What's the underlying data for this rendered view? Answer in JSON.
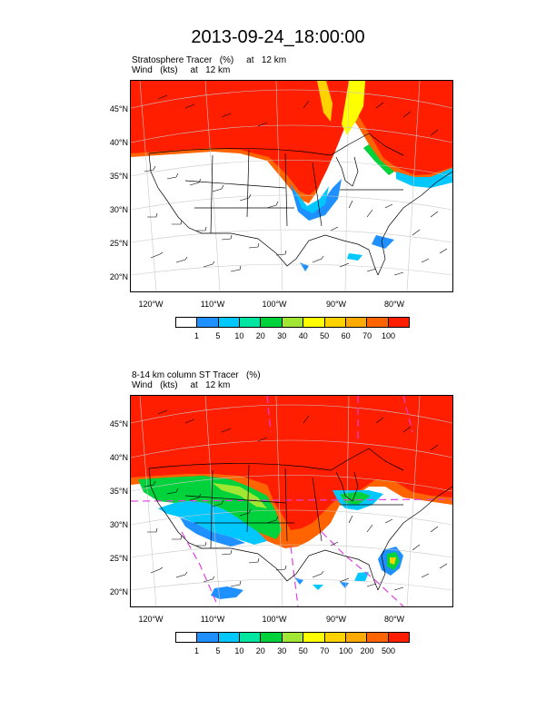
{
  "title": "2013-09-24_18:00:00",
  "panels": [
    {
      "subtitle_lines": [
        "Stratosphere Tracer   (%)     at   12 km",
        "Wind   (kts)     at   12 km"
      ],
      "lat_labels": [
        "45°N",
        "40°N",
        "35°N",
        "30°N",
        "25°N",
        "20°N"
      ],
      "lon_labels": [
        "120°W",
        "110°W",
        "100°W",
        "90°W",
        "80°W"
      ],
      "colorbar_colors": [
        "#ffffff",
        "#1e90ff",
        "#00c8ff",
        "#00e6a0",
        "#00d23c",
        "#a0e632",
        "#ffff00",
        "#ffd200",
        "#ffaa00",
        "#ff6400",
        "#ff1e00"
      ],
      "colorbar_labels": [
        "1",
        "5",
        "10",
        "20",
        "30",
        "40",
        "50",
        "60",
        "70",
        "100"
      ]
    },
    {
      "subtitle_lines": [
        "8-14 km column ST Tracer   (%)",
        "Wind   (kts)     at   12 km"
      ],
      "lat_labels": [
        "45°N",
        "40°N",
        "35°N",
        "30°N",
        "25°N",
        "20°N"
      ],
      "lon_labels": [
        "120°W",
        "110°W",
        "100°W",
        "90°W",
        "80°W"
      ],
      "colorbar_colors": [
        "#ffffff",
        "#1e90ff",
        "#00c8ff",
        "#00e6a0",
        "#00d23c",
        "#a0e632",
        "#ffff00",
        "#ffd200",
        "#ffaa00",
        "#ff6400",
        "#ff1e00"
      ],
      "colorbar_labels": [
        "1",
        "5",
        "10",
        "20",
        "30",
        "50",
        "70",
        "100",
        "200",
        "500"
      ]
    }
  ]
}
